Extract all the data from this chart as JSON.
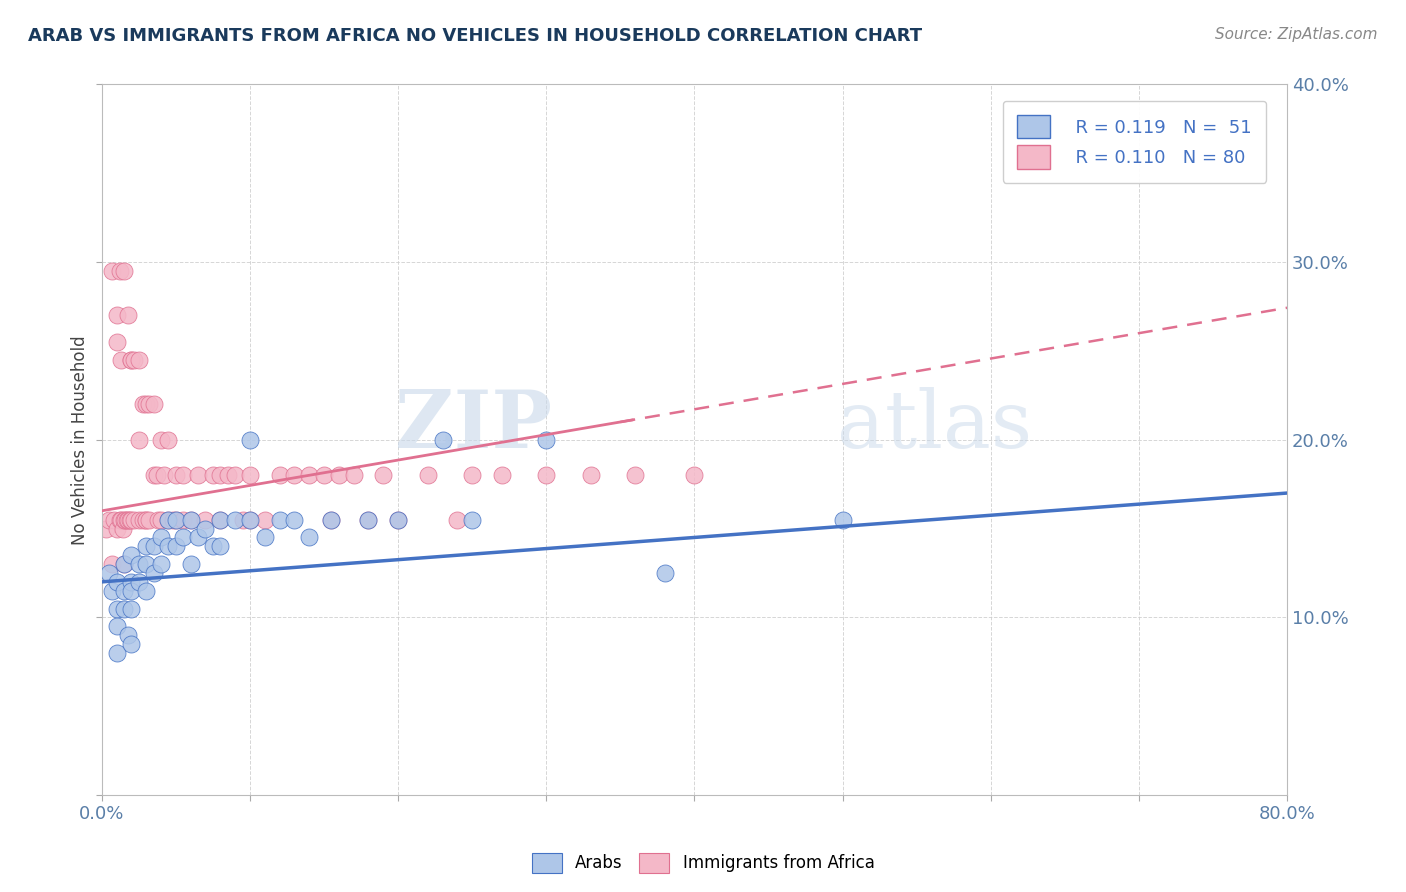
{
  "title": "ARAB VS IMMIGRANTS FROM AFRICA NO VEHICLES IN HOUSEHOLD CORRELATION CHART",
  "source_text": "Source: ZipAtlas.com",
  "ylabel": "No Vehicles in Household",
  "xlim": [
    0,
    0.8
  ],
  "ylim": [
    0,
    0.4
  ],
  "arab_color": "#aec6e8",
  "africa_color": "#f4b8c8",
  "arab_line_color": "#4472c4",
  "africa_line_color": "#e07090",
  "watermark_zip": "ZIP",
  "watermark_atlas": "atlas",
  "legend_r_arab": "R = 0.119",
  "legend_n_arab": "N =  51",
  "legend_r_africa": "R = 0.110",
  "legend_n_africa": "N = 80",
  "arab_x": [
    0.005,
    0.007,
    0.01,
    0.01,
    0.01,
    0.01,
    0.015,
    0.015,
    0.015,
    0.018,
    0.02,
    0.02,
    0.02,
    0.02,
    0.02,
    0.025,
    0.025,
    0.03,
    0.03,
    0.03,
    0.035,
    0.035,
    0.04,
    0.04,
    0.045,
    0.045,
    0.05,
    0.05,
    0.055,
    0.06,
    0.06,
    0.065,
    0.07,
    0.075,
    0.08,
    0.08,
    0.09,
    0.1,
    0.1,
    0.11,
    0.12,
    0.13,
    0.14,
    0.155,
    0.18,
    0.2,
    0.23,
    0.25,
    0.3,
    0.38,
    0.5
  ],
  "arab_y": [
    0.125,
    0.115,
    0.12,
    0.105,
    0.095,
    0.08,
    0.13,
    0.115,
    0.105,
    0.09,
    0.135,
    0.12,
    0.115,
    0.105,
    0.085,
    0.13,
    0.12,
    0.14,
    0.13,
    0.115,
    0.14,
    0.125,
    0.145,
    0.13,
    0.155,
    0.14,
    0.155,
    0.14,
    0.145,
    0.155,
    0.13,
    0.145,
    0.15,
    0.14,
    0.155,
    0.14,
    0.155,
    0.2,
    0.155,
    0.145,
    0.155,
    0.155,
    0.145,
    0.155,
    0.155,
    0.155,
    0.2,
    0.155,
    0.2,
    0.125,
    0.155
  ],
  "africa_x": [
    0.003,
    0.005,
    0.007,
    0.007,
    0.008,
    0.01,
    0.01,
    0.01,
    0.012,
    0.012,
    0.013,
    0.013,
    0.014,
    0.015,
    0.015,
    0.015,
    0.016,
    0.017,
    0.018,
    0.018,
    0.019,
    0.02,
    0.02,
    0.02,
    0.022,
    0.022,
    0.025,
    0.025,
    0.025,
    0.028,
    0.028,
    0.03,
    0.03,
    0.03,
    0.032,
    0.032,
    0.035,
    0.035,
    0.037,
    0.038,
    0.04,
    0.04,
    0.042,
    0.045,
    0.045,
    0.048,
    0.05,
    0.05,
    0.055,
    0.055,
    0.06,
    0.065,
    0.07,
    0.075,
    0.08,
    0.08,
    0.085,
    0.09,
    0.095,
    0.1,
    0.1,
    0.11,
    0.12,
    0.13,
    0.14,
    0.15,
    0.155,
    0.16,
    0.17,
    0.18,
    0.19,
    0.2,
    0.22,
    0.24,
    0.25,
    0.27,
    0.3,
    0.33,
    0.36,
    0.4
  ],
  "africa_y": [
    0.15,
    0.155,
    0.295,
    0.13,
    0.155,
    0.27,
    0.255,
    0.15,
    0.295,
    0.155,
    0.245,
    0.155,
    0.15,
    0.295,
    0.155,
    0.13,
    0.155,
    0.155,
    0.27,
    0.155,
    0.155,
    0.245,
    0.245,
    0.155,
    0.245,
    0.155,
    0.245,
    0.2,
    0.155,
    0.22,
    0.155,
    0.22,
    0.155,
    0.155,
    0.22,
    0.155,
    0.22,
    0.18,
    0.18,
    0.155,
    0.2,
    0.155,
    0.18,
    0.2,
    0.155,
    0.155,
    0.18,
    0.155,
    0.18,
    0.155,
    0.155,
    0.18,
    0.155,
    0.18,
    0.18,
    0.155,
    0.18,
    0.18,
    0.155,
    0.155,
    0.18,
    0.155,
    0.18,
    0.18,
    0.18,
    0.18,
    0.155,
    0.18,
    0.18,
    0.155,
    0.18,
    0.155,
    0.18,
    0.155,
    0.18,
    0.18,
    0.18,
    0.18,
    0.18,
    0.18
  ]
}
